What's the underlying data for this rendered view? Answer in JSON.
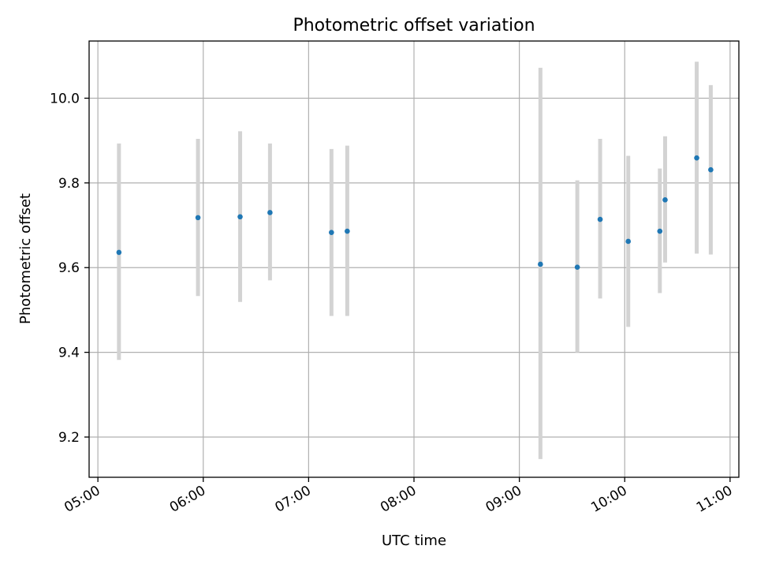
{
  "chart_data": {
    "type": "scatter",
    "title": "Photometric offset variation",
    "xlabel": "UTC time",
    "ylabel": "Photometric offset",
    "xlim": [
      "04:55",
      "11:05"
    ],
    "ylim": [
      9.105,
      10.135
    ],
    "x_ticks": [
      "05:00",
      "06:00",
      "07:00",
      "08:00",
      "09:00",
      "10:00",
      "11:00"
    ],
    "y_ticks": [
      "9.2",
      "9.4",
      "9.6",
      "9.8",
      "10.0"
    ],
    "grid": true,
    "error_bar_color": "#d3d3d3",
    "point_color": "#1f77b4",
    "points": [
      {
        "x": "05:12",
        "y": 9.636,
        "ylow": 9.382,
        "yhigh": 9.893
      },
      {
        "x": "05:57",
        "y": 9.718,
        "ylow": 9.533,
        "yhigh": 9.904
      },
      {
        "x": "06:21",
        "y": 9.72,
        "ylow": 9.519,
        "yhigh": 9.922
      },
      {
        "x": "06:38",
        "y": 9.73,
        "ylow": 9.57,
        "yhigh": 9.893
      },
      {
        "x": "07:13",
        "y": 9.683,
        "ylow": 9.486,
        "yhigh": 9.88
      },
      {
        "x": "07:22",
        "y": 9.686,
        "ylow": 9.486,
        "yhigh": 9.888
      },
      {
        "x": "09:12",
        "y": 9.608,
        "ylow": 9.148,
        "yhigh": 10.072
      },
      {
        "x": "09:33",
        "y": 9.601,
        "ylow": 9.4,
        "yhigh": 9.806
      },
      {
        "x": "09:46",
        "y": 9.714,
        "ylow": 9.527,
        "yhigh": 9.904
      },
      {
        "x": "10:02",
        "y": 9.662,
        "ylow": 9.46,
        "yhigh": 9.864
      },
      {
        "x": "10:20",
        "y": 9.686,
        "ylow": 9.54,
        "yhigh": 9.834
      },
      {
        "x": "10:23",
        "y": 9.76,
        "ylow": 9.612,
        "yhigh": 9.91
      },
      {
        "x": "10:41",
        "y": 9.859,
        "ylow": 9.633,
        "yhigh": 10.086
      },
      {
        "x": "10:49",
        "y": 9.831,
        "ylow": 9.631,
        "yhigh": 10.031
      }
    ]
  }
}
